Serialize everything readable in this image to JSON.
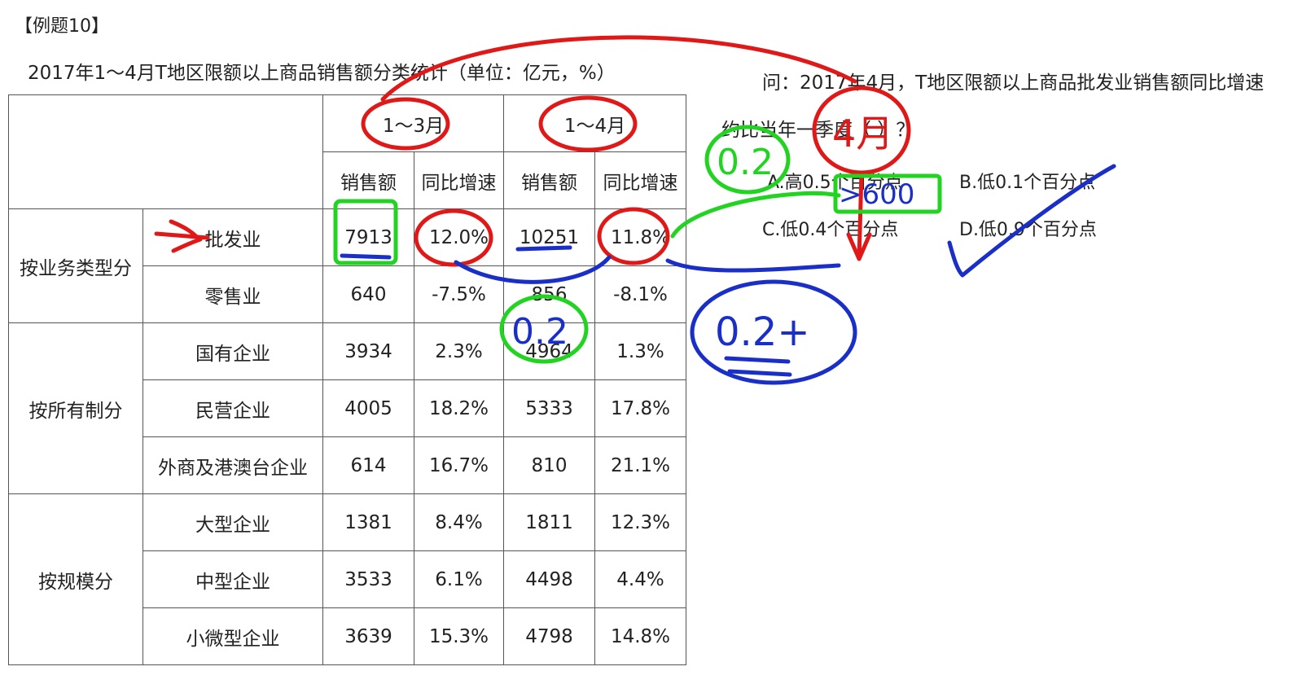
{
  "example_label": "【例题10】",
  "table_title": "2017年1～4月T地区限额以上商品销售额分类统计（单位：亿元，%）",
  "table": {
    "period_headers": [
      "1～3月",
      "1～4月"
    ],
    "column_headers": [
      "销售额",
      "同比增速",
      "销售额",
      "同比增速"
    ],
    "groups": [
      {
        "name": "按业务类型分",
        "rows": [
          {
            "label": "批发业",
            "values": [
              "7913",
              "12.0%",
              "10251",
              "11.8%"
            ]
          },
          {
            "label": "零售业",
            "values": [
              "640",
              "-7.5%",
              "856",
              "-8.1%"
            ]
          }
        ]
      },
      {
        "name": "按所有制分",
        "rows": [
          {
            "label": "国有企业",
            "values": [
              "3934",
              "2.3%",
              "4964",
              "1.3%"
            ]
          },
          {
            "label": "民营企业",
            "values": [
              "4005",
              "18.2%",
              "5333",
              "17.8%"
            ]
          },
          {
            "label": "外商及港澳台企业",
            "values": [
              "614",
              "16.7%",
              "810",
              "21.1%"
            ]
          }
        ]
      },
      {
        "name": "按规模分",
        "rows": [
          {
            "label": "大型企业",
            "values": [
              "1381",
              "8.4%",
              "1811",
              "12.3%"
            ]
          },
          {
            "label": "中型企业",
            "values": [
              "3533",
              "6.1%",
              "4498",
              "4.4%"
            ]
          },
          {
            "label": "小微型企业",
            "values": [
              "3639",
              "15.3%",
              "4798",
              "14.8%"
            ]
          }
        ]
      }
    ]
  },
  "question": {
    "line1": "问：2017年4月，T地区限额以上商品批发业销售额同比增速",
    "line2": "约比当年一季度（ ）？",
    "options": {
      "a": "A.高0.5个百分点",
      "b": "B.低0.1个百分点",
      "c": "C.低0.4个百分点",
      "d": "D.低0.9个百分点"
    }
  },
  "annotations": {
    "red_note": "4月",
    "green_note_top": "0.2",
    "green_note_table": "0.2",
    "blue_note_box": ">600",
    "blue_note_circle": "0.2+",
    "colors": {
      "red": "#e01818",
      "blue": "#1a2fc8",
      "green": "#22d322"
    }
  }
}
